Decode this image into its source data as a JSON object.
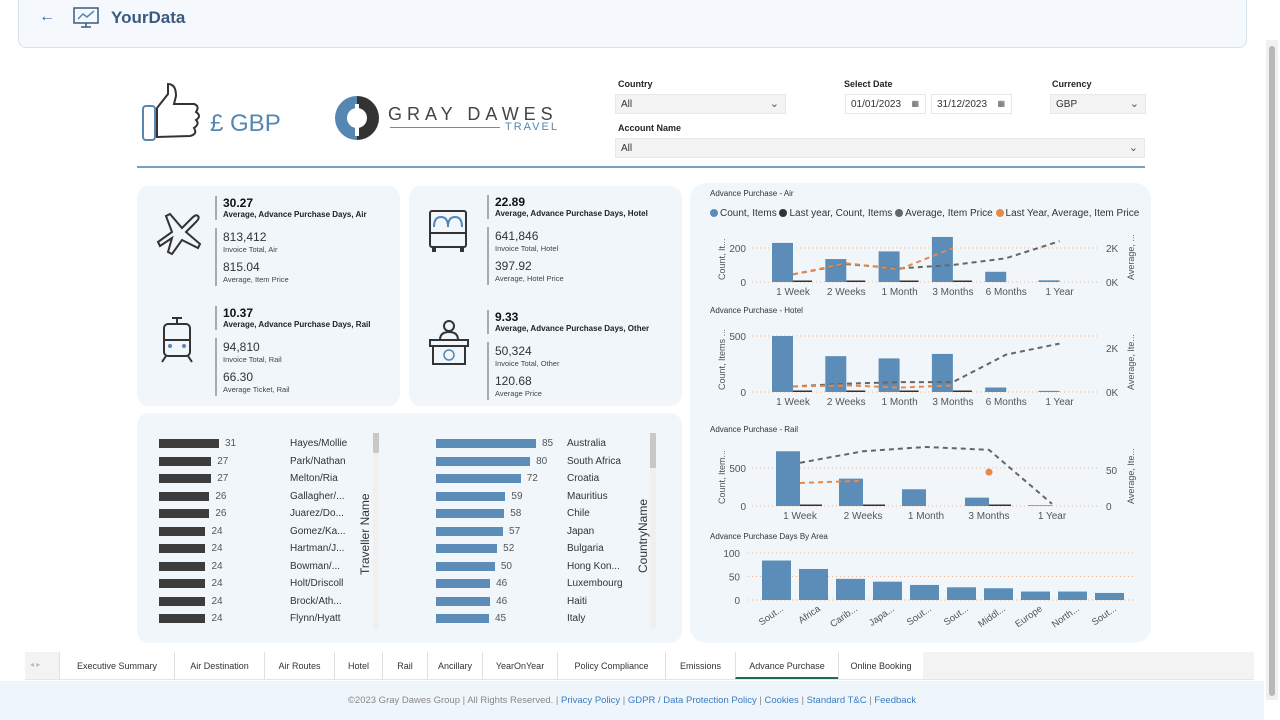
{
  "app": {
    "title": "YourData",
    "back_icon": "arrow-left-icon",
    "logo_icon": "monitor-chart-icon"
  },
  "brand": {
    "currency_banner": "£ GBP",
    "logo_text": "GRAY DAWES",
    "logo_sub": "TRAVEL",
    "accent": "#5587b3"
  },
  "filters": {
    "country": {
      "label": "Country",
      "value": "All"
    },
    "account": {
      "label": "Account Name",
      "value": "All"
    },
    "date": {
      "label": "Select Date",
      "from": "01/01/2023",
      "to": "31/12/2023"
    },
    "currency": {
      "label": "Currency",
      "value": "GBP"
    }
  },
  "kpis": [
    {
      "icon": "airplane-icon",
      "main_value": "30.27",
      "main_label": "Average, Advance Purchase Days, Air",
      "v1": "813,412",
      "l1": "Invoice Total, Air",
      "v2": "815.04",
      "l2": "Average, Item Price"
    },
    {
      "icon": "bed-icon",
      "main_value": "22.89",
      "main_label": "Average, Advance Purchase Days, Hotel",
      "v1": "641,846",
      "l1": "Invoice Total, Hotel",
      "v2": "397.92",
      "l2": "Average, Hotel Price"
    },
    {
      "icon": "train-icon",
      "main_value": "10.37",
      "main_label": "Average, Advance Purchase Days, Rail",
      "v1": "94,810",
      "l1": "Invoice Total, Rail",
      "v2": "66.30",
      "l2": "Average Ticket, Rail"
    },
    {
      "icon": "reception-desk-icon",
      "main_value": "9.33",
      "main_label": "Average, Advance Purchase Days, Other",
      "v1": "50,324",
      "l1": "Invoice Total, Other",
      "v2": "120.68",
      "l2": "Average Price"
    }
  ],
  "travellers": {
    "axis_title": "Traveller Name",
    "rows": [
      {
        "name": "Hayes/Mollie",
        "value": 31
      },
      {
        "name": "Park/Nathan",
        "value": 27
      },
      {
        "name": "Melton/Ria",
        "value": 27
      },
      {
        "name": "Gallagher/...",
        "value": 26
      },
      {
        "name": "Juarez/Do...",
        "value": 26
      },
      {
        "name": "Gomez/Ka...",
        "value": 24
      },
      {
        "name": "Hartman/J...",
        "value": 24
      },
      {
        "name": "Bowman/...",
        "value": 24
      },
      {
        "name": "Holt/Driscoll",
        "value": 24
      },
      {
        "name": "Brock/Ath...",
        "value": 24
      },
      {
        "name": "Flynn/Hyatt",
        "value": 24
      }
    ]
  },
  "countries": {
    "axis_title": "CountryName",
    "rows": [
      {
        "name": "Australia",
        "value": 85
      },
      {
        "name": "South Africa",
        "value": 80
      },
      {
        "name": "Croatia",
        "value": 72
      },
      {
        "name": "Mauritius",
        "value": 59
      },
      {
        "name": "Chile",
        "value": 58
      },
      {
        "name": "Japan",
        "value": 57
      },
      {
        "name": "Bulgaria",
        "value": 52
      },
      {
        "name": "Hong Kon...",
        "value": 50
      },
      {
        "name": "Luxembourg",
        "value": 46
      },
      {
        "name": "Haiti",
        "value": 46
      },
      {
        "name": "Italy",
        "value": 45
      }
    ]
  },
  "colors": {
    "count": "#5b8db8",
    "last_year_count": "#333333",
    "avg_price": "#666666",
    "last_year_avg": "#e8894a"
  },
  "legend": [
    "Count, Items",
    "Last year, Count, Items",
    "Average, Item Price",
    "Last Year, Average, Item Price"
  ],
  "chart_data": [
    {
      "type": "bar+line",
      "title": "Advance Purchase - Air",
      "ylabel": "Count, It...",
      "y2label": "Average, ...",
      "categories": [
        "1 Week",
        "2 Weeks",
        "1 Month",
        "3 Months",
        "6 Months",
        "1 Year"
      ],
      "yticks": [
        "0",
        "200"
      ],
      "y2ticks": [
        "0K",
        "2K"
      ],
      "series": [
        {
          "name": "Count, Items",
          "values": [
            230,
            135,
            180,
            265,
            60,
            10
          ]
        },
        {
          "name": "Last year, Count, Items",
          "values": [
            8,
            3,
            3,
            3,
            0,
            0
          ]
        },
        {
          "name": "Average, Item Price",
          "values": [
            450,
            1050,
            800,
            1000,
            1400,
            2400
          ]
        },
        {
          "name": "Last Year, Average, Item Price",
          "values": [
            450,
            1100,
            750,
            2000,
            null,
            null
          ]
        }
      ]
    },
    {
      "type": "bar+line",
      "title": "Advance Purchase - Hotel",
      "ylabel": "Count, Items ...",
      "y2label": "Average, Ite...",
      "categories": [
        "1 Week",
        "2 Weeks",
        "1 Month",
        "3 Months",
        "6 Months",
        "1 Year"
      ],
      "yticks": [
        "0",
        "500"
      ],
      "y2ticks": [
        "0K",
        "2K"
      ],
      "series": [
        {
          "name": "Count, Items",
          "values": [
            500,
            320,
            300,
            340,
            40,
            10
          ]
        },
        {
          "name": "Last year, Count, Items",
          "values": [
            10,
            5,
            12,
            5,
            0,
            0
          ]
        },
        {
          "name": "Average, Item Price",
          "values": [
            250,
            380,
            450,
            450,
            1700,
            2200
          ]
        },
        {
          "name": "Last Year, Average, Item Price",
          "values": [
            250,
            300,
            200,
            300,
            null,
            null
          ]
        }
      ]
    },
    {
      "type": "bar+line",
      "title": "Advance Purchase - Rail",
      "ylabel": "Count, Item...",
      "y2label": "Average, Ite...",
      "categories": [
        "1 Week",
        "2 Weeks",
        "1 Month",
        "3 Months",
        "1 Year"
      ],
      "yticks": [
        "0",
        "500"
      ],
      "y2ticks": [
        "0",
        "50"
      ],
      "series": [
        {
          "name": "Count, Items",
          "values": [
            720,
            360,
            220,
            110,
            10
          ]
        },
        {
          "name": "Last year, Count, Items",
          "values": [
            15,
            10,
            0,
            10,
            0
          ]
        },
        {
          "name": "Average, Item Price",
          "values": [
            60,
            76,
            82,
            78,
            3
          ]
        },
        {
          "name": "Last Year, Average, Item Price",
          "values": [
            32,
            35,
            null,
            47,
            null
          ]
        }
      ]
    },
    {
      "type": "bar",
      "title": "Advance Purchase Days By Area",
      "categories": [
        "Sout...",
        "Africa",
        "Carib...",
        "Japa...",
        "Sout...",
        "Sout...",
        "Middl...",
        "Europe",
        "North...",
        "Sout..."
      ],
      "values": [
        84,
        66,
        45,
        39,
        32,
        27,
        25,
        18,
        18,
        15
      ],
      "yticks": [
        "0",
        "50",
        "100"
      ],
      "ylim": [
        0,
        100
      ]
    }
  ],
  "tabs": [
    "Executive Summary",
    "Air Destination",
    "Air Routes",
    "Hotel",
    "Rail",
    "Ancillary",
    "YearOnYear",
    "Policy Compliance",
    "Emissions",
    "Advance Purchase",
    "Online Booking"
  ],
  "active_tab": "Advance Purchase",
  "footer": {
    "copyright": "©2023 Gray Dawes Group | All Rights Reserved. |",
    "links": [
      "Privacy Policy",
      "GDPR / Data Protection Policy",
      "Cookies",
      "Standard T&C",
      "Feedback"
    ]
  }
}
